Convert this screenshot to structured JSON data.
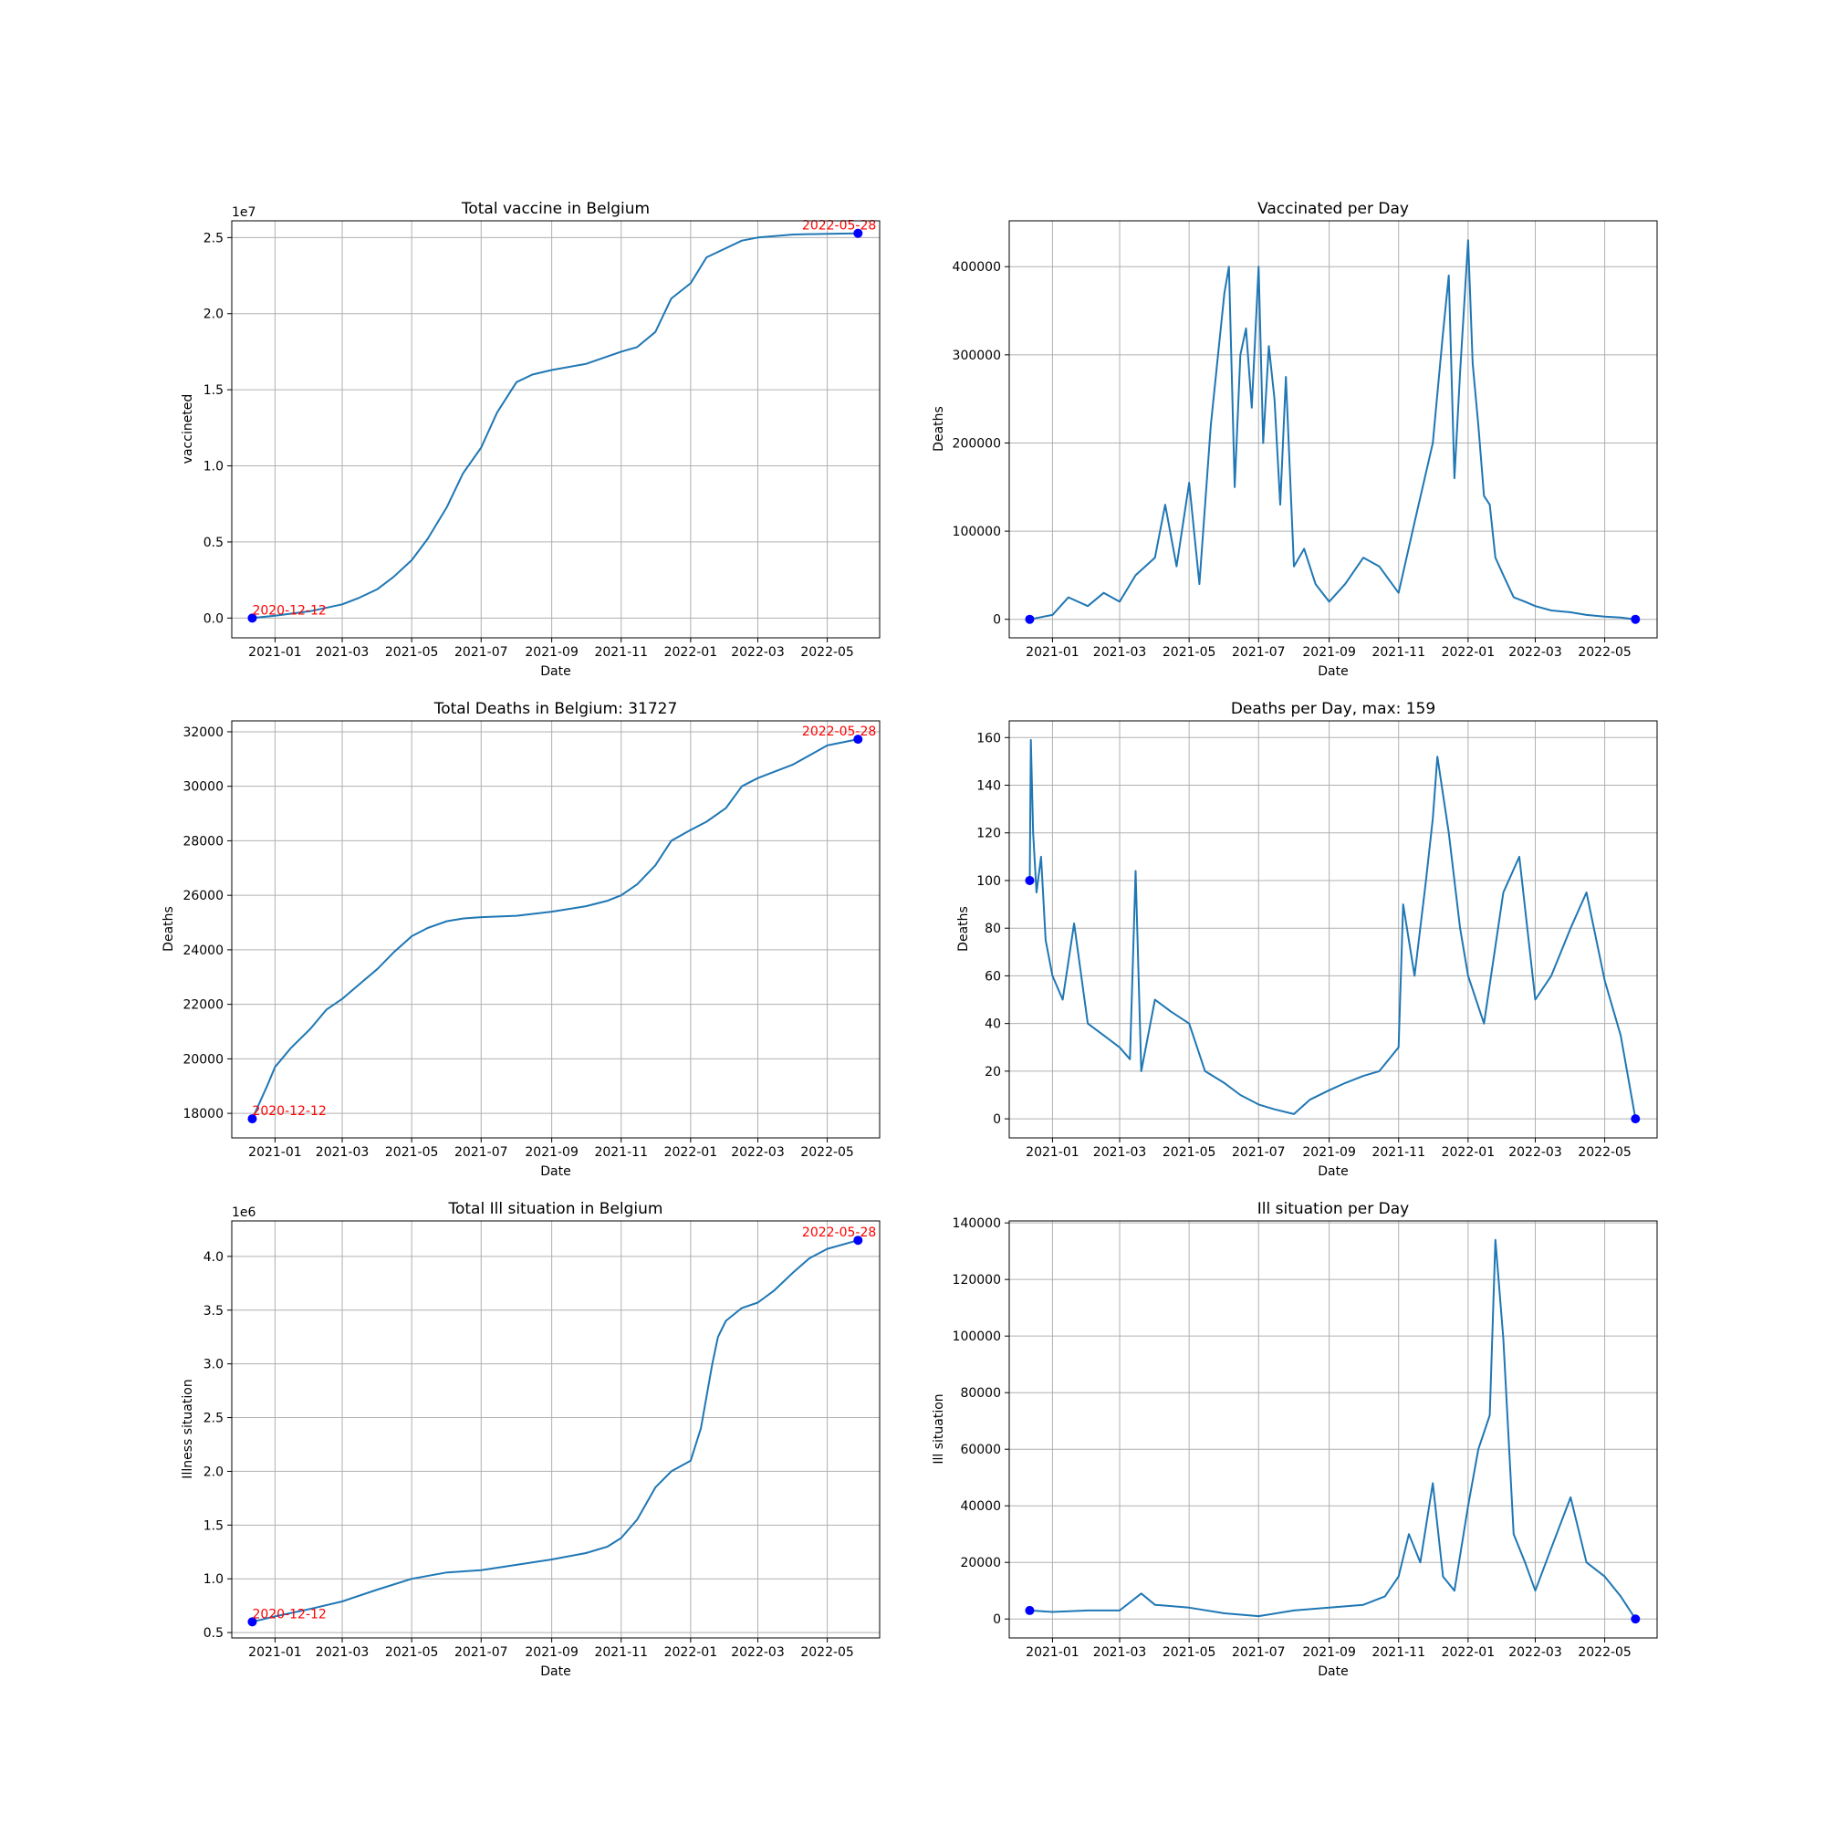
{
  "chart_data": [
    {
      "type": "line",
      "title": "Total vaccine in Belgium",
      "xlabel": "Date",
      "ylabel": "vaccineted",
      "offset_label": "1e7",
      "xlim": [
        "2020-11-24",
        "2022-06-16"
      ],
      "ylim": [
        -1300000,
        26100000
      ],
      "yticks": [
        0,
        5000000,
        10000000,
        15000000,
        20000000,
        25000000
      ],
      "ytick_labels": [
        "0.0",
        "0.5",
        "1.0",
        "1.5",
        "2.0",
        "2.5"
      ],
      "xticks": [
        "2021-01-01",
        "2021-03-01",
        "2021-05-01",
        "2021-07-01",
        "2021-09-01",
        "2021-11-01",
        "2022-01-01",
        "2022-03-01",
        "2022-05-01"
      ],
      "xtick_labels": [
        "2021-01",
        "2021-03",
        "2021-05",
        "2021-07",
        "2021-09",
        "2021-11",
        "2022-01",
        "2022-03",
        "2022-05"
      ],
      "grid": true,
      "series": [
        {
          "x": [
            "2020-12-12",
            "2021-01-01",
            "2021-02-01",
            "2021-03-01",
            "2021-03-15",
            "2021-04-01",
            "2021-04-15",
            "2021-05-01",
            "2021-05-15",
            "2021-06-01",
            "2021-06-15",
            "2021-07-01",
            "2021-07-15",
            "2021-08-01",
            "2021-08-15",
            "2021-09-01",
            "2021-10-01",
            "2021-11-01",
            "2021-11-15",
            "2021-12-01",
            "2021-12-15",
            "2022-01-01",
            "2022-01-15",
            "2022-02-01",
            "2022-02-15",
            "2022-03-01",
            "2022-04-01",
            "2022-05-01",
            "2022-05-28"
          ],
          "values": [
            0,
            150000,
            450000,
            900000,
            1300000,
            1900000,
            2700000,
            3800000,
            5200000,
            7300000,
            9500000,
            11200000,
            13500000,
            15500000,
            16000000,
            16300000,
            16700000,
            17500000,
            17800000,
            18800000,
            21000000,
            22000000,
            23700000,
            24300000,
            24800000,
            25000000,
            25200000,
            25250000,
            25280000
          ]
        }
      ],
      "markers": [
        {
          "x": "2020-12-12",
          "y": 0,
          "label": "2020-12-12"
        },
        {
          "x": "2022-05-28",
          "y": 25280000,
          "label": "2022-05-28"
        }
      ]
    },
    {
      "type": "line",
      "title": "Vaccinated per Day",
      "xlabel": "Date",
      "ylabel": "Deaths",
      "xlim": [
        "2020-11-24",
        "2022-06-16"
      ],
      "ylim": [
        -21000,
        452000
      ],
      "yticks": [
        0,
        100000,
        200000,
        300000,
        400000
      ],
      "ytick_labels": [
        "0",
        "100000",
        "200000",
        "300000",
        "400000"
      ],
      "xticks": [
        "2021-01-01",
        "2021-03-01",
        "2021-05-01",
        "2021-07-01",
        "2021-09-01",
        "2021-11-01",
        "2022-01-01",
        "2022-03-01",
        "2022-05-01"
      ],
      "xtick_labels": [
        "2021-01",
        "2021-03",
        "2021-05",
        "2021-07",
        "2021-09",
        "2021-11",
        "2022-01",
        "2022-03",
        "2022-05"
      ],
      "grid": true,
      "series": [
        {
          "x": [
            "2020-12-12",
            "2021-01-01",
            "2021-01-15",
            "2021-02-01",
            "2021-02-15",
            "2021-03-01",
            "2021-03-15",
            "2021-04-01",
            "2021-04-10",
            "2021-04-20",
            "2021-05-01",
            "2021-05-10",
            "2021-05-20",
            "2021-06-01",
            "2021-06-05",
            "2021-06-10",
            "2021-06-15",
            "2021-06-20",
            "2021-06-25",
            "2021-07-01",
            "2021-07-05",
            "2021-07-10",
            "2021-07-15",
            "2021-07-20",
            "2021-07-25",
            "2021-08-01",
            "2021-08-10",
            "2021-08-20",
            "2021-09-01",
            "2021-09-15",
            "2021-10-01",
            "2021-10-15",
            "2021-11-01",
            "2021-11-15",
            "2021-12-01",
            "2021-12-10",
            "2021-12-15",
            "2021-12-20",
            "2021-12-25",
            "2022-01-01",
            "2022-01-05",
            "2022-01-10",
            "2022-01-15",
            "2022-01-20",
            "2022-01-25",
            "2022-02-01",
            "2022-02-10",
            "2022-02-20",
            "2022-03-01",
            "2022-03-15",
            "2022-04-01",
            "2022-04-15",
            "2022-05-01",
            "2022-05-15",
            "2022-05-28"
          ],
          "values": [
            0,
            5000,
            25000,
            15000,
            30000,
            20000,
            50000,
            70000,
            130000,
            60000,
            155000,
            40000,
            220000,
            370000,
            400000,
            150000,
            300000,
            330000,
            240000,
            400000,
            200000,
            310000,
            250000,
            130000,
            275000,
            60000,
            80000,
            40000,
            20000,
            40000,
            70000,
            60000,
            30000,
            110000,
            200000,
            325000,
            390000,
            160000,
            280000,
            430000,
            290000,
            220000,
            140000,
            130000,
            70000,
            50000,
            25000,
            20000,
            15000,
            10000,
            8000,
            5000,
            3000,
            2000,
            0
          ]
        }
      ],
      "markers": [
        {
          "x": "2020-12-12",
          "y": 0
        },
        {
          "x": "2022-05-28",
          "y": 0
        }
      ]
    },
    {
      "type": "line",
      "title": "Total Deaths in Belgium: 31727",
      "xlabel": "Date",
      "ylabel": "Deaths",
      "xlim": [
        "2020-11-24",
        "2022-06-16"
      ],
      "ylim": [
        17100,
        32400
      ],
      "yticks": [
        18000,
        20000,
        22000,
        24000,
        26000,
        28000,
        30000,
        32000
      ],
      "ytick_labels": [
        "18000",
        "20000",
        "22000",
        "24000",
        "26000",
        "28000",
        "30000",
        "32000"
      ],
      "xticks": [
        "2021-01-01",
        "2021-03-01",
        "2021-05-01",
        "2021-07-01",
        "2021-09-01",
        "2021-11-01",
        "2022-01-01",
        "2022-03-01",
        "2022-05-01"
      ],
      "xtick_labels": [
        "2021-01",
        "2021-03",
        "2021-05",
        "2021-07",
        "2021-09",
        "2021-11",
        "2022-01",
        "2022-03",
        "2022-05"
      ],
      "grid": true,
      "series": [
        {
          "x": [
            "2020-12-12",
            "2020-12-25",
            "2021-01-01",
            "2021-01-15",
            "2021-02-01",
            "2021-02-15",
            "2021-03-01",
            "2021-03-15",
            "2021-04-01",
            "2021-04-15",
            "2021-05-01",
            "2021-05-15",
            "2021-06-01",
            "2021-06-15",
            "2021-07-01",
            "2021-08-01",
            "2021-09-01",
            "2021-10-01",
            "2021-10-20",
            "2021-11-01",
            "2021-11-15",
            "2021-12-01",
            "2021-12-15",
            "2022-01-01",
            "2022-01-15",
            "2022-02-01",
            "2022-02-15",
            "2022-03-01",
            "2022-04-01",
            "2022-05-01",
            "2022-05-28"
          ],
          "values": [
            17800,
            19000,
            19700,
            20400,
            21100,
            21800,
            22200,
            22700,
            23300,
            23900,
            24500,
            24800,
            25050,
            25150,
            25200,
            25250,
            25400,
            25600,
            25800,
            26000,
            26400,
            27100,
            28000,
            28400,
            28700,
            29200,
            30000,
            30300,
            30800,
            31500,
            31727
          ]
        }
      ],
      "markers": [
        {
          "x": "2020-12-12",
          "y": 17800,
          "label": "2020-12-12"
        },
        {
          "x": "2022-05-28",
          "y": 31727,
          "label": "2022-05-28"
        }
      ]
    },
    {
      "type": "line",
      "title": "Deaths per Day, max: 159",
      "xlabel": "Date",
      "ylabel": "Deaths",
      "xlim": [
        "2020-11-24",
        "2022-06-16"
      ],
      "ylim": [
        -8,
        167
      ],
      "yticks": [
        0,
        20,
        40,
        60,
        80,
        100,
        120,
        140,
        160
      ],
      "ytick_labels": [
        "0",
        "20",
        "40",
        "60",
        "80",
        "100",
        "120",
        "140",
        "160"
      ],
      "xticks": [
        "2021-01-01",
        "2021-03-01",
        "2021-05-01",
        "2021-07-01",
        "2021-09-01",
        "2021-11-01",
        "2022-01-01",
        "2022-03-01",
        "2022-05-01"
      ],
      "xtick_labels": [
        "2021-01",
        "2021-03",
        "2021-05",
        "2021-07",
        "2021-09",
        "2021-11",
        "2022-01",
        "2022-03",
        "2022-05"
      ],
      "grid": true,
      "series": [
        {
          "x": [
            "2020-12-12",
            "2020-12-13",
            "2020-12-15",
            "2020-12-18",
            "2020-12-22",
            "2020-12-26",
            "2021-01-01",
            "2021-01-10",
            "2021-01-20",
            "2021-02-01",
            "2021-02-15",
            "2021-03-01",
            "2021-03-10",
            "2021-03-15",
            "2021-03-20",
            "2021-04-01",
            "2021-04-15",
            "2021-05-01",
            "2021-05-15",
            "2021-06-01",
            "2021-06-15",
            "2021-07-01",
            "2021-07-15",
            "2021-08-01",
            "2021-08-15",
            "2021-09-01",
            "2021-09-15",
            "2021-10-01",
            "2021-10-15",
            "2021-11-01",
            "2021-11-05",
            "2021-11-15",
            "2021-11-25",
            "2021-12-01",
            "2021-12-05",
            "2021-12-15",
            "2021-12-25",
            "2022-01-01",
            "2022-01-15",
            "2022-02-01",
            "2022-02-15",
            "2022-03-01",
            "2022-03-15",
            "2022-04-01",
            "2022-04-15",
            "2022-05-01",
            "2022-05-15",
            "2022-05-28"
          ],
          "values": [
            100,
            159,
            120,
            95,
            110,
            75,
            60,
            50,
            82,
            40,
            35,
            30,
            25,
            104,
            20,
            50,
            45,
            40,
            20,
            15,
            10,
            6,
            4,
            2,
            8,
            12,
            15,
            18,
            20,
            30,
            90,
            60,
            100,
            126,
            152,
            120,
            80,
            60,
            40,
            95,
            110,
            50,
            60,
            80,
            95,
            58,
            35,
            0
          ]
        }
      ],
      "markers": [
        {
          "x": "2020-12-12",
          "y": 100
        },
        {
          "x": "2022-05-28",
          "y": 0
        }
      ]
    },
    {
      "type": "line",
      "title": "Total Ill situation in Belgium",
      "xlabel": "Date",
      "ylabel": "Illness situation",
      "offset_label": "1e6",
      "xlim": [
        "2020-11-24",
        "2022-06-16"
      ],
      "ylim": [
        450000,
        4330000
      ],
      "yticks": [
        500000,
        1000000,
        1500000,
        2000000,
        2500000,
        3000000,
        3500000,
        4000000
      ],
      "ytick_labels": [
        "0.5",
        "1.0",
        "1.5",
        "2.0",
        "2.5",
        "3.0",
        "3.5",
        "4.0"
      ],
      "xticks": [
        "2021-01-01",
        "2021-03-01",
        "2021-05-01",
        "2021-07-01",
        "2021-09-01",
        "2021-11-01",
        "2022-01-01",
        "2022-03-01",
        "2022-05-01"
      ],
      "xtick_labels": [
        "2021-01",
        "2021-03",
        "2021-05",
        "2021-07",
        "2021-09",
        "2021-11",
        "2022-01",
        "2022-03",
        "2022-05"
      ],
      "grid": true,
      "series": [
        {
          "x": [
            "2020-12-12",
            "2021-01-01",
            "2021-02-01",
            "2021-03-01",
            "2021-04-01",
            "2021-05-01",
            "2021-06-01",
            "2021-07-01",
            "2021-08-01",
            "2021-09-01",
            "2021-10-01",
            "2021-10-20",
            "2021-11-01",
            "2021-11-15",
            "2021-12-01",
            "2021-12-15",
            "2022-01-01",
            "2022-01-10",
            "2022-01-20",
            "2022-01-25",
            "2022-02-01",
            "2022-02-15",
            "2022-03-01",
            "2022-03-15",
            "2022-04-01",
            "2022-04-15",
            "2022-05-01",
            "2022-05-28"
          ],
          "values": [
            600000,
            650000,
            720000,
            790000,
            900000,
            1000000,
            1060000,
            1080000,
            1130000,
            1180000,
            1240000,
            1300000,
            1380000,
            1550000,
            1850000,
            2000000,
            2100000,
            2400000,
            3000000,
            3250000,
            3400000,
            3520000,
            3570000,
            3680000,
            3850000,
            3980000,
            4070000,
            4150000
          ]
        }
      ],
      "markers": [
        {
          "x": "2020-12-12",
          "y": 600000,
          "label": "2020-12-12"
        },
        {
          "x": "2022-05-28",
          "y": 4150000,
          "label": "2022-05-28"
        }
      ]
    },
    {
      "type": "line",
      "title": "Ill situation per Day",
      "xlabel": "Date",
      "ylabel": "Ill situation",
      "xlim": [
        "2020-11-24",
        "2022-06-16"
      ],
      "ylim": [
        -6700,
        140700
      ],
      "yticks": [
        0,
        20000,
        40000,
        60000,
        80000,
        100000,
        120000,
        140000
      ],
      "ytick_labels": [
        "0",
        "20000",
        "40000",
        "60000",
        "80000",
        "100000",
        "120000",
        "140000"
      ],
      "xticks": [
        "2021-01-01",
        "2021-03-01",
        "2021-05-01",
        "2021-07-01",
        "2021-09-01",
        "2021-11-01",
        "2022-01-01",
        "2022-03-01",
        "2022-05-01"
      ],
      "xtick_labels": [
        "2021-01",
        "2021-03",
        "2021-05",
        "2021-07",
        "2021-09",
        "2021-11",
        "2022-01",
        "2022-03",
        "2022-05"
      ],
      "grid": true,
      "series": [
        {
          "x": [
            "2020-12-12",
            "2021-01-01",
            "2021-02-01",
            "2021-03-01",
            "2021-03-20",
            "2021-04-01",
            "2021-05-01",
            "2021-06-01",
            "2021-07-01",
            "2021-08-01",
            "2021-09-01",
            "2021-10-01",
            "2021-10-20",
            "2021-11-01",
            "2021-11-10",
            "2021-11-20",
            "2021-12-01",
            "2021-12-10",
            "2021-12-20",
            "2022-01-01",
            "2022-01-10",
            "2022-01-20",
            "2022-01-25",
            "2022-02-01",
            "2022-02-10",
            "2022-02-20",
            "2022-03-01",
            "2022-03-15",
            "2022-04-01",
            "2022-04-15",
            "2022-05-01",
            "2022-05-15",
            "2022-05-28"
          ],
          "values": [
            3000,
            2500,
            3000,
            3000,
            9000,
            5000,
            4000,
            2000,
            1000,
            3000,
            4000,
            5000,
            8000,
            15000,
            30000,
            20000,
            48000,
            15000,
            10000,
            40000,
            60000,
            72000,
            134000,
            99000,
            30000,
            20000,
            10000,
            25000,
            43000,
            20000,
            15000,
            8000,
            0
          ]
        }
      ],
      "markers": [
        {
          "x": "2020-12-12",
          "y": 3000
        },
        {
          "x": "2022-05-28",
          "y": 0
        }
      ]
    }
  ]
}
